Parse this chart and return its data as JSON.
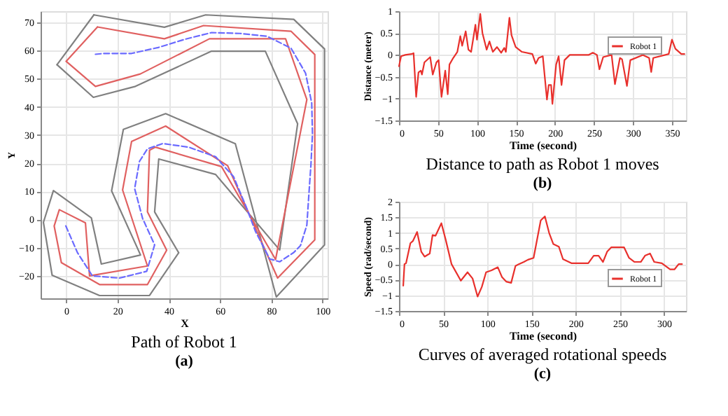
{
  "chart_data": [
    {
      "type": "line",
      "title": "Path of Robot 1",
      "subtitle": "(a)",
      "xlabel": "X",
      "ylabel": "Y",
      "xlim": [
        -10,
        102
      ],
      "ylim": [
        -28,
        74
      ],
      "xticks": [
        0,
        20,
        40,
        60,
        80,
        100
      ],
      "yticks": [
        -20,
        -10,
        0,
        10,
        20,
        30,
        40,
        50,
        60,
        70
      ],
      "grid": true,
      "legend": false,
      "marker": "none",
      "series": [
        {
          "color": "#808080",
          "line_style": "solid",
          "x": [
            10.8,
            38.3,
            54.4,
            88.8,
            100.8,
            100.8,
            82,
            66,
            38.8,
            22.3,
            17.7,
            29,
            13.7,
            9.8,
            -5,
            -8.9,
            -5.5,
            13,
            32.5,
            43.9,
            34.5,
            36.1,
            58.3,
            83.3,
            90.3,
            77.7,
            56.7,
            27,
            10.6,
            -3.6
          ],
          "values": [
            72.7,
            68.3,
            72.7,
            71.1,
            60.6,
            -9,
            -27.5,
            26.9,
            37.6,
            32,
            10.2,
            -12.6,
            -15.8,
            0.6,
            10.3,
            -1,
            -19.8,
            -27,
            -27,
            -11.8,
            2.7,
            21.5,
            16,
            -10.8,
            34,
            59.8,
            59.8,
            47.3,
            43.4,
            55
          ]
        },
        {
          "color": "#808080",
          "line_style": "solid",
          "x": [
            -3.6,
            10.8
          ],
          "values": [
            55,
            72.7
          ]
        },
        {
          "color": "#e06060",
          "line_style": "solid",
          "x": [
            12.2,
            38.3,
            53.6,
            87.7,
            97,
            97,
            82.5,
            63,
            38.8,
            25.5,
            22,
            31.7,
            9.1,
            7.5,
            -2.7,
            -4.7,
            -1.9,
            13,
            31.7,
            39.2,
            31.7,
            32.5,
            34.8,
            60.6,
            81.7,
            93.9,
            85.6,
            55.9,
            28.9,
            11.4,
            0
          ],
          "values": [
            68.4,
            64.2,
            68.9,
            66.9,
            58.6,
            -7.2,
            -20.8,
            19.1,
            33.2,
            27.7,
            10.5,
            -16.5,
            -20,
            -1.2,
            3.5,
            -2.3,
            -15.3,
            -23.1,
            -23.1,
            -10.9,
            2.7,
            24.6,
            25.7,
            18.8,
            -14.2,
            42.6,
            64.2,
            64.2,
            51.7,
            47.3,
            56.2
          ]
        },
        {
          "color": "#e06060",
          "line_style": "solid",
          "x": [
            0,
            12.2
          ],
          "values": [
            56.2,
            68.4
          ]
        },
        {
          "color": "#6a6aff",
          "line_style": "dashed",
          "x": [
            11.4,
            14.8,
            25.5,
            35.9,
            46.6,
            56.7,
            67.7,
            78.3,
            87.7,
            93.4,
            95.8,
            96.1,
            95.5,
            94.7,
            93.9,
            91.4,
            88.8,
            83.3,
            79.4,
            73.9,
            70,
            65.3,
            58.3,
            47.8,
            37.7,
            31.7,
            28.6,
            26.7,
            29.8,
            34.5,
            31.4,
            20.8,
            10.2,
            4.4,
            -0.3,
            -0.8
          ],
          "values": [
            58.7,
            59,
            59,
            61.1,
            64.1,
            66.4,
            66.1,
            65.1,
            60.9,
            52,
            41.4,
            30.4,
            19.5,
            9,
            -2,
            -9.3,
            -11.7,
            -15,
            -14,
            -4.3,
            5,
            15.2,
            22.3,
            25.7,
            27,
            25.1,
            20.7,
            11,
            0.4,
            -9,
            -18.4,
            -20.8,
            -20,
            -11.8,
            -2,
            -1.7
          ]
        }
      ]
    },
    {
      "type": "line",
      "title": "Distance to path as Robot 1 moves",
      "subtitle": "(b)",
      "xlabel": "Time (second)",
      "ylabel": "Distance (meter)",
      "xlim": [
        0,
        368
      ],
      "ylim": [
        -1.5,
        1
      ],
      "xticks": [
        0,
        50,
        100,
        150,
        200,
        250,
        300,
        350
      ],
      "yticks": [
        -1.5,
        -1,
        -0.5,
        0,
        0.5,
        1
      ],
      "grid": true,
      "legend": "top right",
      "marker": "none",
      "series": [
        {
          "name": "Robot 1",
          "color": "#e8302c",
          "line_style": "solid",
          "x": [
            0,
            2.7,
            8,
            16,
            18.7,
            22,
            25,
            28,
            29.4,
            32.6,
            40,
            43.3,
            48,
            50.8,
            54.5,
            59.3,
            62.5,
            64.7,
            69.5,
            74.8,
            78.6,
            81,
            85.5,
            89,
            92.5,
            98,
            100,
            104.2,
            107,
            112.4,
            116,
            120.3,
            125.6,
            131,
            135,
            137,
            141.6,
            144.3,
            149.6,
            157.6,
            171,
            175.3,
            179,
            184.4,
            189.7,
            192,
            195,
            196.7,
            201.5,
            204.7,
            208.4,
            212.2,
            219,
            243,
            248.5,
            253.8,
            257,
            261.8,
            272.6,
            276.9,
            283.3,
            286,
            292.3,
            296.6,
            312.7,
            320.7,
            323.4,
            326,
            345.8,
            350,
            354.4,
            362,
            366
          ],
          "values": [
            -0.26,
            -0.03,
            0,
            0.02,
            0.04,
            -0.96,
            -0.4,
            -0.36,
            -0.45,
            -0.17,
            -0.05,
            -0.45,
            -0.17,
            -0.12,
            -0.96,
            -0.36,
            -0.9,
            -0.22,
            -0.07,
            0.07,
            0.43,
            0.21,
            0.54,
            0.12,
            0.07,
            0.69,
            0.35,
            0.94,
            0.5,
            0.12,
            0.31,
            0.07,
            0.18,
            0.05,
            0.16,
            0.07,
            0.85,
            0.45,
            0.18,
            0.07,
            0.02,
            -0.2,
            -0.07,
            -0.03,
            -1.02,
            -0.69,
            -0.69,
            -1.12,
            -0.22,
            -0.03,
            -0.69,
            -0.12,
            0,
            0,
            0.05,
            0,
            -0.33,
            -0.05,
            0,
            -0.67,
            -0.07,
            -0.1,
            -0.71,
            -0.12,
            0,
            -0.07,
            -0.39,
            -0.07,
            0.02,
            0.35,
            0.14,
            0.02,
            0.02
          ]
        }
      ]
    },
    {
      "type": "line",
      "title": "Curves of averaged rotational speeds",
      "subtitle": "(c)",
      "xlabel": "Time (second)",
      "ylabel": "Speed (rad/second)",
      "xlim": [
        0,
        325
      ],
      "ylim": [
        -1.5,
        2
      ],
      "xticks": [
        0,
        50,
        100,
        150,
        200,
        250,
        300
      ],
      "yticks": [
        -1.5,
        -1,
        -0.5,
        0,
        0.5,
        1,
        1.5,
        2
      ],
      "grid": true,
      "legend": "bottom right",
      "marker": "none",
      "series": [
        {
          "name": "Robot 1",
          "color": "#e8302c",
          "line_style": "solid",
          "x": [
            4.8,
            6.2,
            8,
            12.9,
            15.7,
            20.5,
            25.2,
            29,
            34.8,
            38,
            41.4,
            48,
            52.9,
            59.5,
            70,
            77.6,
            83.3,
            89,
            93.8,
            98.6,
            104.8,
            111.9,
            116.7,
            121.4,
            127,
            131.9,
            135.7,
            141.4,
            146,
            152.4,
            160.5,
            165.2,
            170,
            174.8,
            181,
            185.7,
            195.2,
            214.3,
            220.5,
            226,
            231,
            235.7,
            240.5,
            254.8,
            260.5,
            266.7,
            273.8,
            278.6,
            284.3,
            289,
            297.6,
            307,
            311.9,
            316.7,
            320.5
          ],
          "values": [
            -0.69,
            0,
            0.03,
            0.67,
            0.74,
            1.03,
            0.4,
            0.24,
            0.34,
            0.93,
            0.91,
            1.31,
            0.78,
            0,
            -0.53,
            -0.26,
            -0.46,
            -1.04,
            -0.73,
            -0.26,
            -0.2,
            -0.1,
            -0.42,
            -0.56,
            -0.6,
            -0.06,
            0,
            0.07,
            0.14,
            0.2,
            1.4,
            1.53,
            1,
            0.64,
            0.56,
            0.16,
            0.03,
            0.03,
            0.27,
            0.27,
            0.07,
            0.4,
            0.54,
            0.54,
            0.2,
            0.07,
            0.07,
            0.27,
            0.34,
            0.07,
            0.03,
            -0.17,
            -0.17,
            0,
            0
          ]
        }
      ]
    }
  ]
}
